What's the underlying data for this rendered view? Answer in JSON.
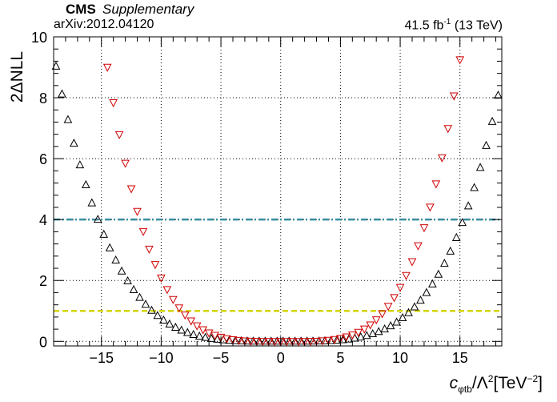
{
  "header": {
    "experiment": "CMS",
    "status": "Supplementary",
    "reference": "arXiv:2012.04120",
    "lumi_value": "41.5 fb",
    "lumi_exp": "-1",
    "lumi_energy": "(13 TeV)"
  },
  "chart_data": {
    "type": "scatter",
    "xlabel_symbol": "c",
    "xlabel_sub": "φtb",
    "xlabel_mid": "/Λ",
    "xlabel_sup2": "2",
    "xlabel_unit": "[TeV",
    "xlabel_unit_sup": "−2",
    "xlabel_close": "]",
    "ylabel": "2ΔNLL",
    "xlim": [
      -19,
      18.5
    ],
    "ylim": [
      -0.15,
      10
    ],
    "xticks": [
      -15,
      -10,
      -5,
      0,
      5,
      10,
      15
    ],
    "yticks": [
      0,
      2,
      4,
      6,
      8,
      10
    ],
    "grid": true,
    "reference_lines": [
      {
        "y": 4,
        "color": "#3a8ea0",
        "style": "dash-dot"
      },
      {
        "y": 1,
        "color": "#d4d400",
        "style": "dashed"
      }
    ],
    "series": [
      {
        "marker": "triangle-up",
        "color": "#000000",
        "center": 0.2,
        "lo_edge": -15.3,
        "hi_edge": 15.3,
        "step": 0.5,
        "xmin": -18.8,
        "xmax": 18.5
      },
      {
        "marker": "triangle-down",
        "color": "#d00000",
        "center": 0.2,
        "lo_edge": -11.8,
        "hi_edge": 12.2,
        "step": 0.5,
        "xmin": -16.0,
        "xmax": 16.0
      }
    ]
  }
}
